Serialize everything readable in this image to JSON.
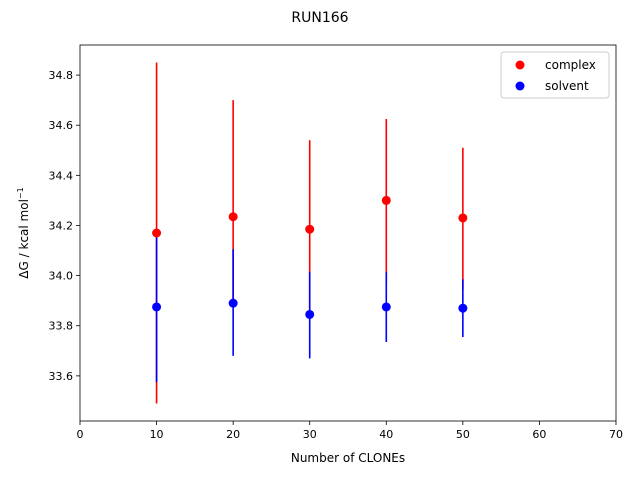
{
  "chart_data": {
    "type": "scatter",
    "title": "RUN166",
    "xlabel": "Number of CLONEs",
    "ylabel_main": "ΔG / kcal mol",
    "ylabel_sup": "−1",
    "xlim": [
      0,
      70
    ],
    "ylim": [
      33.42,
      34.92
    ],
    "xticks": [
      0,
      10,
      20,
      30,
      40,
      50,
      60,
      70
    ],
    "yticks": [
      33.6,
      33.8,
      34.0,
      34.2,
      34.4,
      34.6,
      34.8
    ],
    "ytick_labels": [
      "33.6",
      "33.8",
      "34.0",
      "34.2",
      "34.4",
      "34.6",
      "34.8"
    ],
    "grid": false,
    "legend_position": "top-right",
    "series": [
      {
        "name": "complex",
        "color": "#ff0000",
        "x": [
          10,
          20,
          30,
          40,
          50
        ],
        "y": [
          34.17,
          34.235,
          34.185,
          34.3,
          34.23
        ],
        "err_low": [
          33.49,
          33.89,
          33.845,
          33.975,
          33.945
        ],
        "err_high": [
          34.85,
          34.7,
          34.54,
          34.625,
          34.51
        ]
      },
      {
        "name": "solvent",
        "color": "#0000ff",
        "x": [
          10,
          20,
          30,
          40,
          50
        ],
        "y": [
          33.875,
          33.89,
          33.845,
          33.875,
          33.87
        ],
        "err_low": [
          33.575,
          33.68,
          33.67,
          33.735,
          33.755
        ],
        "err_high": [
          34.17,
          34.105,
          34.015,
          34.015,
          33.985
        ]
      }
    ]
  }
}
